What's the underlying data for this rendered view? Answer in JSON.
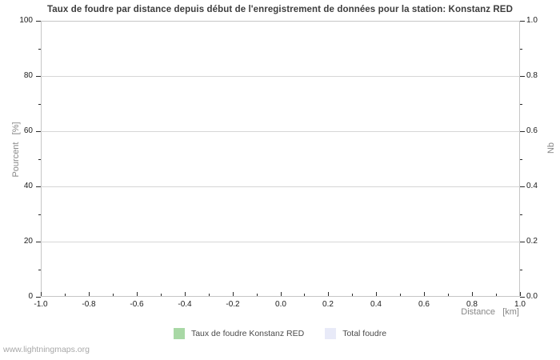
{
  "watermark": "www.lightningmaps.org",
  "chart_data": {
    "type": "bar",
    "title": "Taux de foudre par distance depuis début de l'enregistrement de données pour la station: Konstanz RED",
    "xlabel": "Distance   [km]",
    "ylabel_left": "Pourcent   [%]",
    "ylabel_right": "Nb",
    "xlim": [
      -1.0,
      1.0
    ],
    "ylim_left": [
      0,
      100
    ],
    "ylim_right": [
      0.0,
      1.0
    ],
    "x_major_ticks": [
      -1.0,
      -0.8,
      -0.6,
      -0.4,
      -0.2,
      0.0,
      0.2,
      0.4,
      0.6,
      0.8,
      1.0
    ],
    "x_tick_labels": [
      "-1.0",
      "-0.8",
      "-0.6",
      "-0.4",
      "-0.2",
      "0.0",
      "0.2",
      "0.4",
      "0.6",
      "0.8",
      "1.0"
    ],
    "x_minor_step": 0.1,
    "y_left_major_ticks": [
      0,
      20,
      40,
      60,
      80,
      100
    ],
    "y_left_tick_labels": [
      "0",
      "20",
      "40",
      "60",
      "80",
      "100"
    ],
    "y_left_minor_step": 10,
    "y_right_major_ticks": [
      0.0,
      0.2,
      0.4,
      0.6,
      0.8,
      1.0
    ],
    "y_right_tick_labels": [
      "0.0",
      "0.2",
      "0.4",
      "0.6",
      "0.8",
      "1.0"
    ],
    "y_right_minor_step": 0.1,
    "grid": "horizontal-major-only",
    "legend_position": "bottom",
    "colors": {
      "gridline": "#d6d6d6",
      "plot_border": "#c6c6c6",
      "title_text": "#3d3d3d",
      "axis_label_text": "#878787",
      "tick_text": "#1c1c1c"
    },
    "series": [
      {
        "name": "Taux de foudre Konstanz RED",
        "color": "#a8d8a5",
        "values": []
      },
      {
        "name": "Total foudre",
        "color": "#e8eaf8",
        "values": []
      }
    ]
  }
}
